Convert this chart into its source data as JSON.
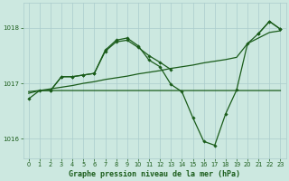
{
  "background_color": "#cce8e0",
  "grid_color": "#aacccc",
  "line_color": "#1a5c1a",
  "title": "Graphe pression niveau de la mer (hPa)",
  "xlim": [
    -0.5,
    23.5
  ],
  "ylim": [
    1015.65,
    1018.45
  ],
  "yticks": [
    1016,
    1017,
    1018
  ],
  "xticks": [
    0,
    1,
    2,
    3,
    4,
    5,
    6,
    7,
    8,
    9,
    10,
    11,
    12,
    13,
    14,
    15,
    16,
    17,
    18,
    19,
    20,
    21,
    22,
    23
  ],
  "series1_no_marker": {
    "x": [
      0,
      1,
      2,
      3,
      4,
      5,
      6,
      7,
      8,
      9,
      10,
      11,
      12,
      13,
      14,
      15,
      16,
      17,
      18,
      19,
      20,
      21,
      22,
      23
    ],
    "y": [
      1016.82,
      1016.87,
      1016.9,
      1016.93,
      1016.96,
      1017.0,
      1017.03,
      1017.07,
      1017.1,
      1017.13,
      1017.17,
      1017.2,
      1017.23,
      1017.27,
      1017.3,
      1017.33,
      1017.37,
      1017.4,
      1017.43,
      1017.47,
      1017.72,
      1017.82,
      1017.92,
      1017.95
    ]
  },
  "series2_no_marker": {
    "x": [
      0,
      1,
      2,
      3,
      4,
      5,
      6,
      7,
      8,
      9,
      10,
      11,
      12,
      13,
      14,
      15,
      16,
      17,
      18,
      19,
      20,
      21,
      22,
      23
    ],
    "y": [
      1016.85,
      1016.87,
      1016.87,
      1016.87,
      1016.87,
      1016.87,
      1016.87,
      1016.87,
      1016.87,
      1016.87,
      1016.87,
      1016.87,
      1016.87,
      1016.87,
      1016.87,
      1016.87,
      1016.87,
      1016.87,
      1016.87,
      1016.87,
      1016.87,
      1016.87,
      1016.87,
      1016.87
    ]
  },
  "series3_marker": {
    "x": [
      0,
      1,
      2,
      3,
      4,
      5,
      6,
      7,
      8,
      9,
      10,
      11,
      12,
      13,
      14,
      15,
      16,
      17,
      18,
      19,
      20,
      21,
      22,
      23
    ],
    "y": [
      1016.72,
      1016.87,
      1016.87,
      1017.12,
      1017.12,
      1017.15,
      1017.18,
      1017.6,
      1017.78,
      1017.82,
      1017.68,
      1017.42,
      1017.3,
      1016.98,
      1016.85,
      1016.38,
      1015.95,
      1015.88,
      1016.45,
      1016.88,
      1017.72,
      1017.9,
      1018.12,
      1017.98
    ]
  },
  "series4_marker_part1": {
    "x": [
      2,
      3,
      4,
      5,
      6,
      7,
      8,
      9,
      10,
      11,
      12,
      13
    ],
    "y": [
      1016.87,
      1017.12,
      1017.12,
      1017.15,
      1017.18,
      1017.58,
      1017.75,
      1017.78,
      1017.65,
      1017.5,
      1017.38,
      1017.25
    ]
  },
  "series4_marker_part2": {
    "x": [
      21,
      22,
      23
    ],
    "y": [
      1017.9,
      1018.12,
      1017.98
    ]
  },
  "title_fontsize": 6.0,
  "tick_fontsize": 4.8,
  "linewidth": 0.9,
  "markersize": 1.8
}
